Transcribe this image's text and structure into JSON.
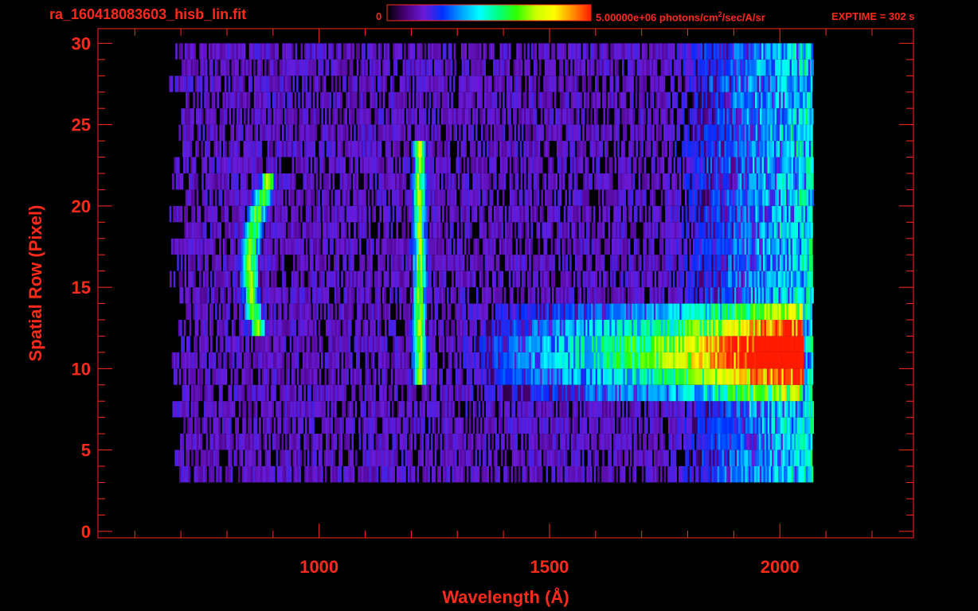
{
  "header": {
    "filename": "ra_160418083603_hisb_lin.fit",
    "colorbar_min_label": "0",
    "colorbar_max_label_pre": "5.00000e+06 photons/cm",
    "colorbar_max_label_sup": "2",
    "colorbar_max_label_post": "/sec/A/sr",
    "exptime_label": "EXPTIME = 302 s"
  },
  "colors": {
    "axis": "#ff2a1a",
    "background": "#000000",
    "colormap": [
      "#000000",
      "#4a007a",
      "#6a1ad8",
      "#0030ff",
      "#00a0ff",
      "#00ffff",
      "#00ff80",
      "#30ff00",
      "#c8ff00",
      "#ffff00",
      "#ff9000",
      "#ff1a00"
    ]
  },
  "chart_data": {
    "type": "heatmap",
    "xlabel": "Wavelength (Å)",
    "ylabel": "Spatial Row (Pixel)",
    "xlim": [
      520,
      2290
    ],
    "ylim": [
      -0.4,
      30.9
    ],
    "x_ticks": [
      1000,
      1500,
      2000
    ],
    "y_ticks": [
      0,
      5,
      10,
      15,
      20,
      25,
      30
    ],
    "colorbar_range": [
      0,
      5000000
    ],
    "colorbar_units": "photons/cm^2/sec/A/sr",
    "exposure_time_s": 302,
    "data_x_range": [
      690,
      2070
    ],
    "data_y_range": [
      3,
      30
    ],
    "features": [
      {
        "name": "arc",
        "wavelength_at_center": 848,
        "wavelength_at_ends": 895,
        "rows": [
          12,
          22
        ],
        "center_row": 16,
        "level": 0.55
      },
      {
        "name": "line",
        "wavelength": 1216,
        "rows": [
          9,
          24
        ],
        "level": 0.58
      },
      {
        "name": "continuum",
        "wavelength_range": [
          1300,
          2050
        ],
        "rows": [
          8,
          14
        ],
        "peak_row": 11,
        "level": 0.88
      }
    ]
  }
}
